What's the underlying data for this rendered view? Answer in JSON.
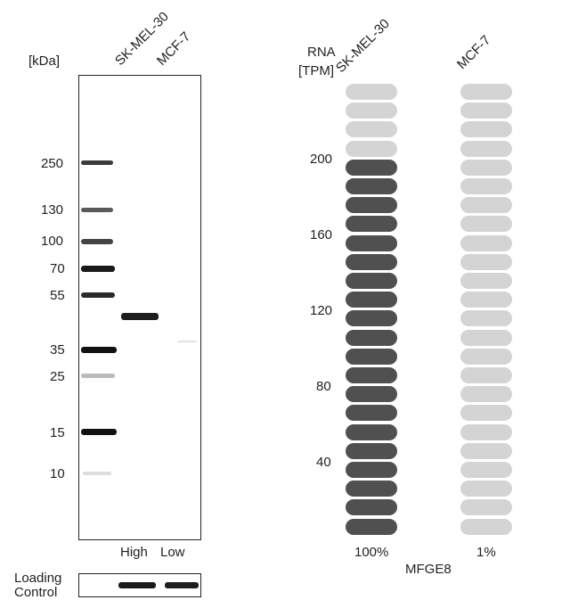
{
  "western_blot": {
    "unit_label": "[kDa]",
    "lanes": [
      {
        "name": "SK-MEL-30",
        "level": "High"
      },
      {
        "name": "MCF-7",
        "level": "Low"
      }
    ],
    "markers": [
      "250",
      "130",
      "100",
      "70",
      "55",
      "35",
      "25",
      "15",
      "10"
    ],
    "loading_control_label_line1": "Loading",
    "loading_control_label_line2": "Control"
  },
  "rna_chart": {
    "axis_label_line1": "RNA",
    "axis_label_line2": "[TPM]",
    "gene": "MFGE8",
    "ticks": [
      "200",
      "160",
      "120",
      "80",
      "40"
    ],
    "columns": [
      {
        "name": "SK-MEL-30",
        "percent": "100%",
        "filled": 20,
        "total": 24
      },
      {
        "name": "MCF-7",
        "percent": "1%",
        "filled": 0,
        "total": 24
      }
    ],
    "colors": {
      "filled": "#505050",
      "empty": "#d4d4d4"
    }
  }
}
